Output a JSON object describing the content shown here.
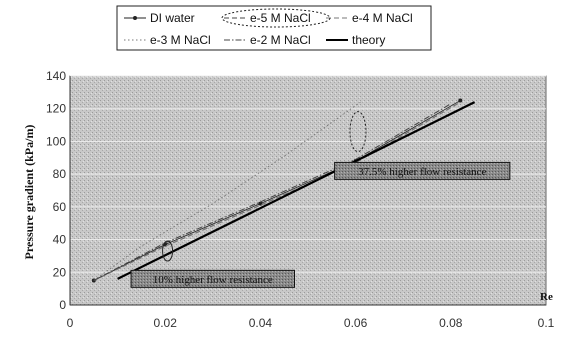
{
  "chart_data": {
    "type": "line",
    "title": "",
    "xlabel": "Re",
    "ylabel": "Pressure gradient (kPa/m)",
    "xlim": [
      0,
      0.1
    ],
    "ylim": [
      0,
      140
    ],
    "xticks": [
      0,
      0.02,
      0.04,
      0.06,
      0.08,
      0.1
    ],
    "xtick_labels": [
      "0",
      "0.02",
      "0.04",
      "0.06",
      "0.08",
      "0.1"
    ],
    "yticks": [
      0,
      20,
      40,
      60,
      80,
      100,
      120,
      140
    ],
    "ytick_labels": [
      "0",
      "20",
      "40",
      "60",
      "80",
      "100",
      "120",
      "140"
    ],
    "grid": true,
    "legend_position": "top",
    "series": [
      {
        "name": "DI water",
        "style": "marker",
        "color": "#222222",
        "x": [
          0.005,
          0.02,
          0.04,
          0.06,
          0.082
        ],
        "y": [
          15,
          37,
          62,
          88,
          125
        ]
      },
      {
        "name": "e-5 M NaCl",
        "style": "dashed",
        "color": "#444444",
        "x": [
          0.005,
          0.02,
          0.04,
          0.06,
          0.082
        ],
        "y": [
          15,
          36,
          61,
          87,
          124
        ]
      },
      {
        "name": "e-4 M NaCl",
        "style": "dashed",
        "color": "#777777",
        "x": [
          0.005,
          0.02,
          0.04,
          0.06,
          0.082
        ],
        "y": [
          15,
          36,
          61,
          87,
          124
        ]
      },
      {
        "name": "e-3 M NaCl",
        "style": "dotted",
        "color": "#777777",
        "x": [
          0.005,
          0.015,
          0.03,
          0.045,
          0.061
        ],
        "y": [
          15,
          36,
          62,
          91,
          124
        ]
      },
      {
        "name": "e-2 M NaCl",
        "style": "dashdot",
        "color": "#444444",
        "x": [
          0.005,
          0.02,
          0.04,
          0.06,
          0.08
        ],
        "y": [
          15,
          38,
          63,
          89,
          123
        ]
      },
      {
        "name": "theory",
        "style": "solid",
        "color": "#000000",
        "x": [
          0.01,
          0.085
        ],
        "y": [
          16,
          124
        ]
      }
    ],
    "annotations": [
      {
        "text": "37.5% higher flow resistance",
        "x": 0.074,
        "y": 82
      },
      {
        "text": "10% higher flow resistance",
        "x": 0.03,
        "y": 16
      }
    ]
  }
}
